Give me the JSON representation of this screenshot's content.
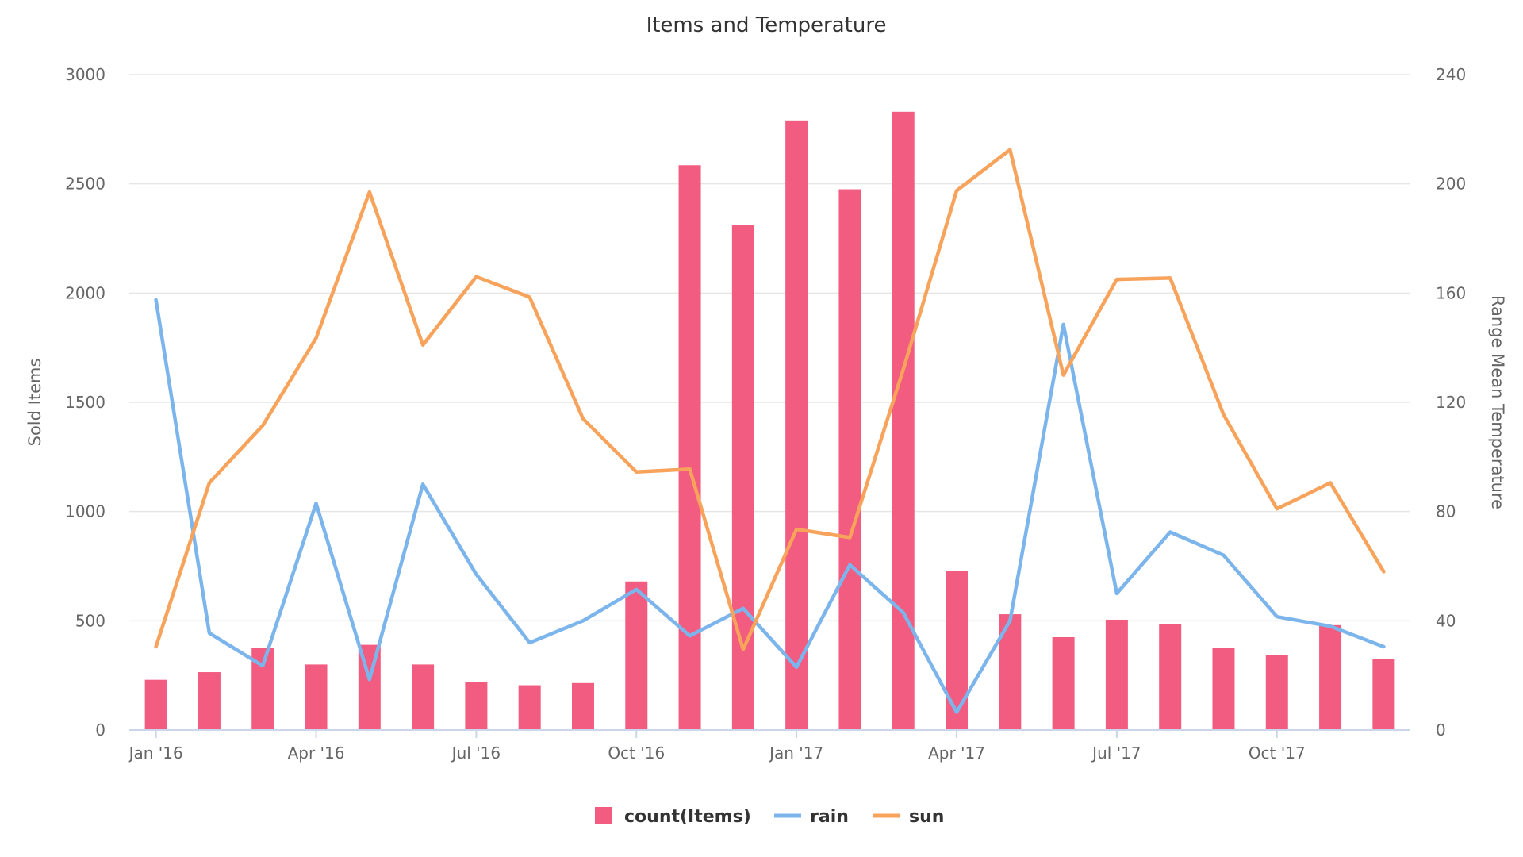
{
  "chart_data": {
    "type": "bar",
    "title": "Items and Temperature",
    "x_tick_labels": [
      "Jan '16",
      "Apr '16",
      "Jul '16",
      "Oct '16",
      "Jan '17",
      "Apr '17",
      "Jul '17",
      "Oct '17"
    ],
    "x_tick_month_index": [
      0,
      3,
      6,
      9,
      12,
      15,
      18,
      21
    ],
    "months": 24,
    "y_left": {
      "label": "Sold Items",
      "min": 0,
      "max": 3000,
      "ticks": [
        0,
        500,
        1000,
        1500,
        2000,
        2500,
        3000
      ],
      "tick_labels": [
        "0",
        "500",
        "1000",
        "1500",
        "2000",
        "2500",
        "3000"
      ]
    },
    "y_right": {
      "label": "Range Mean Temperature",
      "min": 0,
      "max": 240,
      "ticks": [
        0,
        40,
        80,
        120,
        160,
        200,
        240
      ],
      "tick_labels": [
        "0",
        "40",
        "80",
        "120",
        "160",
        "200",
        "240"
      ]
    },
    "grid": true,
    "legend_position": "bottom-center",
    "series": [
      {
        "name": "count(Items)",
        "kind": "bar",
        "axis": "left",
        "color": "#f15c80",
        "values": [
          230,
          265,
          375,
          300,
          390,
          300,
          220,
          205,
          215,
          680,
          2585,
          2310,
          2790,
          2475,
          2830,
          730,
          530,
          425,
          505,
          485,
          375,
          345,
          480,
          325
        ]
      },
      {
        "name": "rain",
        "kind": "line",
        "axis": "right",
        "color": "#7cb5ec",
        "values": [
          157.5,
          35.5,
          23.5,
          83,
          18.5,
          90,
          57,
          32,
          40,
          51.5,
          34.5,
          44.5,
          23,
          60.5,
          43,
          6.5,
          40,
          148.5,
          50,
          72.5,
          64,
          41.5,
          38,
          30.5
        ]
      },
      {
        "name": "sun",
        "kind": "line",
        "axis": "right",
        "color": "#f7a35c",
        "values": [
          30.5,
          90.5,
          111.5,
          143.5,
          197,
          141,
          166,
          158.5,
          114,
          94.5,
          95.5,
          29.5,
          73.5,
          70.5,
          132,
          197.5,
          212.5,
          130,
          165,
          165.5,
          115.5,
          81,
          90.5,
          58
        ]
      }
    ]
  }
}
